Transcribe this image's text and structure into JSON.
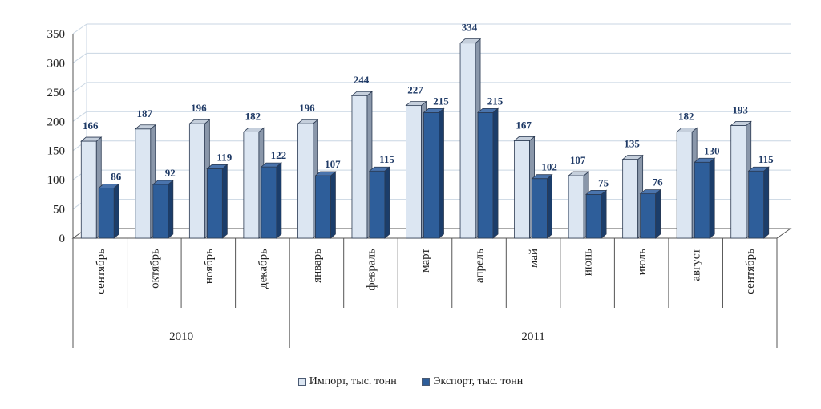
{
  "chart_data": {
    "type": "bar",
    "categories": [
      "сентябрь",
      "октябрь",
      "ноябрь",
      "декабрь",
      "январь",
      "февраль",
      "март",
      "апрель",
      "май",
      "июнь",
      "июль",
      "август",
      "сентябрь"
    ],
    "groups": [
      {
        "label": "2010",
        "count": 4
      },
      {
        "label": "2011",
        "count": 9
      }
    ],
    "series": [
      {
        "name": "Импорт, тыс. тонн",
        "values": [
          166,
          187,
          196,
          182,
          196,
          244,
          227,
          334,
          167,
          107,
          135,
          182,
          193
        ],
        "color": "#DCE6F2"
      },
      {
        "name": "Экспорт, тыс. тонн",
        "values": [
          86,
          92,
          119,
          122,
          107,
          115,
          215,
          215,
          102,
          75,
          76,
          130,
          115
        ],
        "color": "#2E5E9A"
      }
    ],
    "ylim": [
      0,
      350
    ],
    "yticks": [
      0,
      50,
      100,
      150,
      200,
      250,
      300,
      350
    ],
    "grid": true,
    "legend_position": "bottom"
  }
}
